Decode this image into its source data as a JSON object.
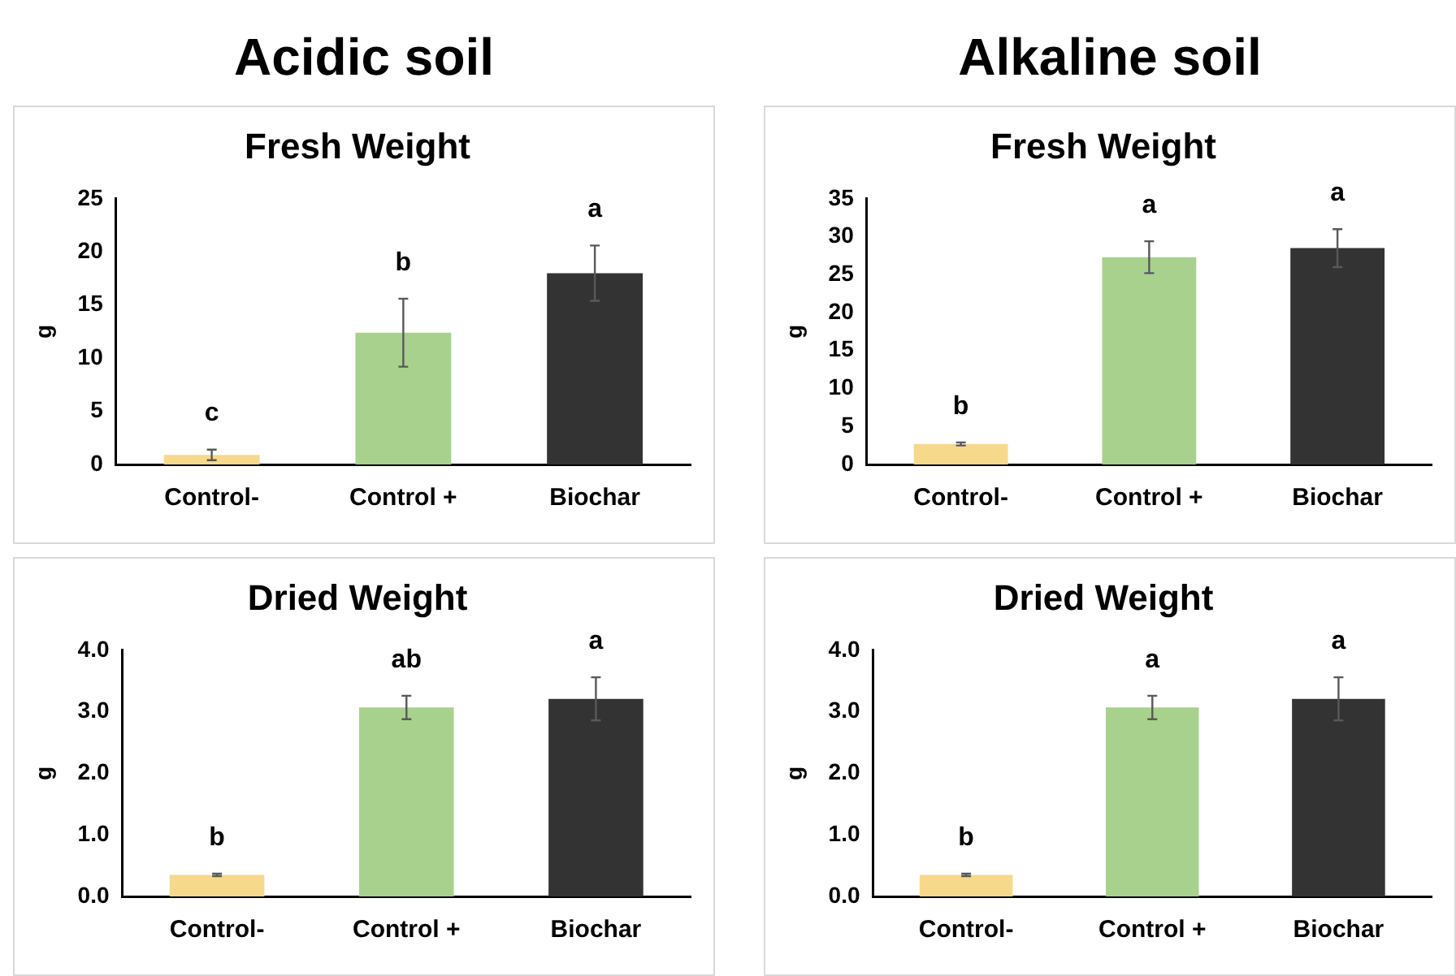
{
  "chart_data": [
    {
      "type": "bar",
      "title": "Fresh Weight",
      "ylabel": "g",
      "categories": [
        "Control-",
        "Control +",
        "Biochar"
      ],
      "colors": [
        "#f7d98b",
        "#a9d18e",
        "#333333"
      ],
      "values": [
        0.9,
        12.4,
        18.0
      ],
      "errors": [
        0.5,
        3.2,
        2.6
      ],
      "ylim": [
        0,
        25
      ],
      "yticks": [
        0,
        5,
        10,
        15,
        20,
        25
      ],
      "grid": false,
      "legend": false,
      "annotations": [
        "Acidic soil",
        {
          "text": "c",
          "x": "Control-",
          "y": 0.9
        },
        {
          "text": "b",
          "x": "Control +",
          "y": 12.4
        },
        {
          "text": "a",
          "x": "Biochar",
          "y": 18.0
        }
      ]
    },
    {
      "type": "bar",
      "title": "Fresh Weight",
      "ylabel": "g",
      "categories": [
        "Control-",
        "Control +",
        "Biochar"
      ],
      "colors": [
        "#f7d98b",
        "#a9d18e",
        "#333333"
      ],
      "values": [
        2.7,
        27.3,
        28.5
      ],
      "errors": [
        0.2,
        2.1,
        2.5
      ],
      "ylim": [
        0,
        35
      ],
      "yticks": [
        0,
        5,
        10,
        15,
        20,
        25,
        30,
        35
      ],
      "grid": false,
      "legend": false,
      "annotations": [
        "Alkaline soil",
        {
          "text": "b",
          "x": "Control-",
          "y": 2.7
        },
        {
          "text": "a",
          "x": "Control +",
          "y": 27.3
        },
        {
          "text": "a",
          "x": "Biochar",
          "y": 28.5
        }
      ]
    },
    {
      "type": "bar",
      "title": "Dried Weight",
      "ylabel": "g",
      "categories": [
        "Control-",
        "Control +",
        "Biochar"
      ],
      "colors": [
        "#f7d98b",
        "#a9d18e",
        "#333333"
      ],
      "values": [
        0.35,
        3.07,
        3.21
      ],
      "errors": [
        0.02,
        0.19,
        0.35
      ],
      "ylim": [
        0,
        4
      ],
      "yticks": [
        {
          "value": 0,
          "label": "0.0"
        },
        {
          "value": 1,
          "label": "1.0"
        },
        {
          "value": 2,
          "label": "2.0"
        },
        {
          "value": 3,
          "label": "3.0"
        },
        {
          "value": 4,
          "label": "4.0"
        }
      ],
      "grid": false,
      "legend": false,
      "annotations": [
        {
          "text": "b",
          "x": "Control-",
          "y": 0.35
        },
        {
          "text": "ab",
          "x": "Control +",
          "y": 3.07
        },
        {
          "text": "a",
          "x": "Biochar",
          "y": 3.21
        }
      ]
    },
    {
      "type": "bar",
      "title": "Dried Weight",
      "ylabel": "g",
      "categories": [
        "Control-",
        "Control +",
        "Biochar"
      ],
      "colors": [
        "#f7d98b",
        "#a9d18e",
        "#333333"
      ],
      "values": [
        0.35,
        3.07,
        3.21
      ],
      "errors": [
        0.02,
        0.19,
        0.35
      ],
      "ylim": [
        0,
        4
      ],
      "yticks": [
        {
          "value": 0,
          "label": "0.0"
        },
        {
          "value": 1,
          "label": "1.0"
        },
        {
          "value": 2,
          "label": "2.0"
        },
        {
          "value": 3,
          "label": "3.0"
        },
        {
          "value": 4,
          "label": "4.0"
        }
      ],
      "grid": false,
      "legend": false,
      "annotations": [
        {
          "text": "b",
          "x": "Control-",
          "y": 0.35
        },
        {
          "text": "a",
          "x": "Control +",
          "y": 3.07
        },
        {
          "text": "a",
          "x": "Biochar",
          "y": 3.21
        }
      ]
    }
  ]
}
